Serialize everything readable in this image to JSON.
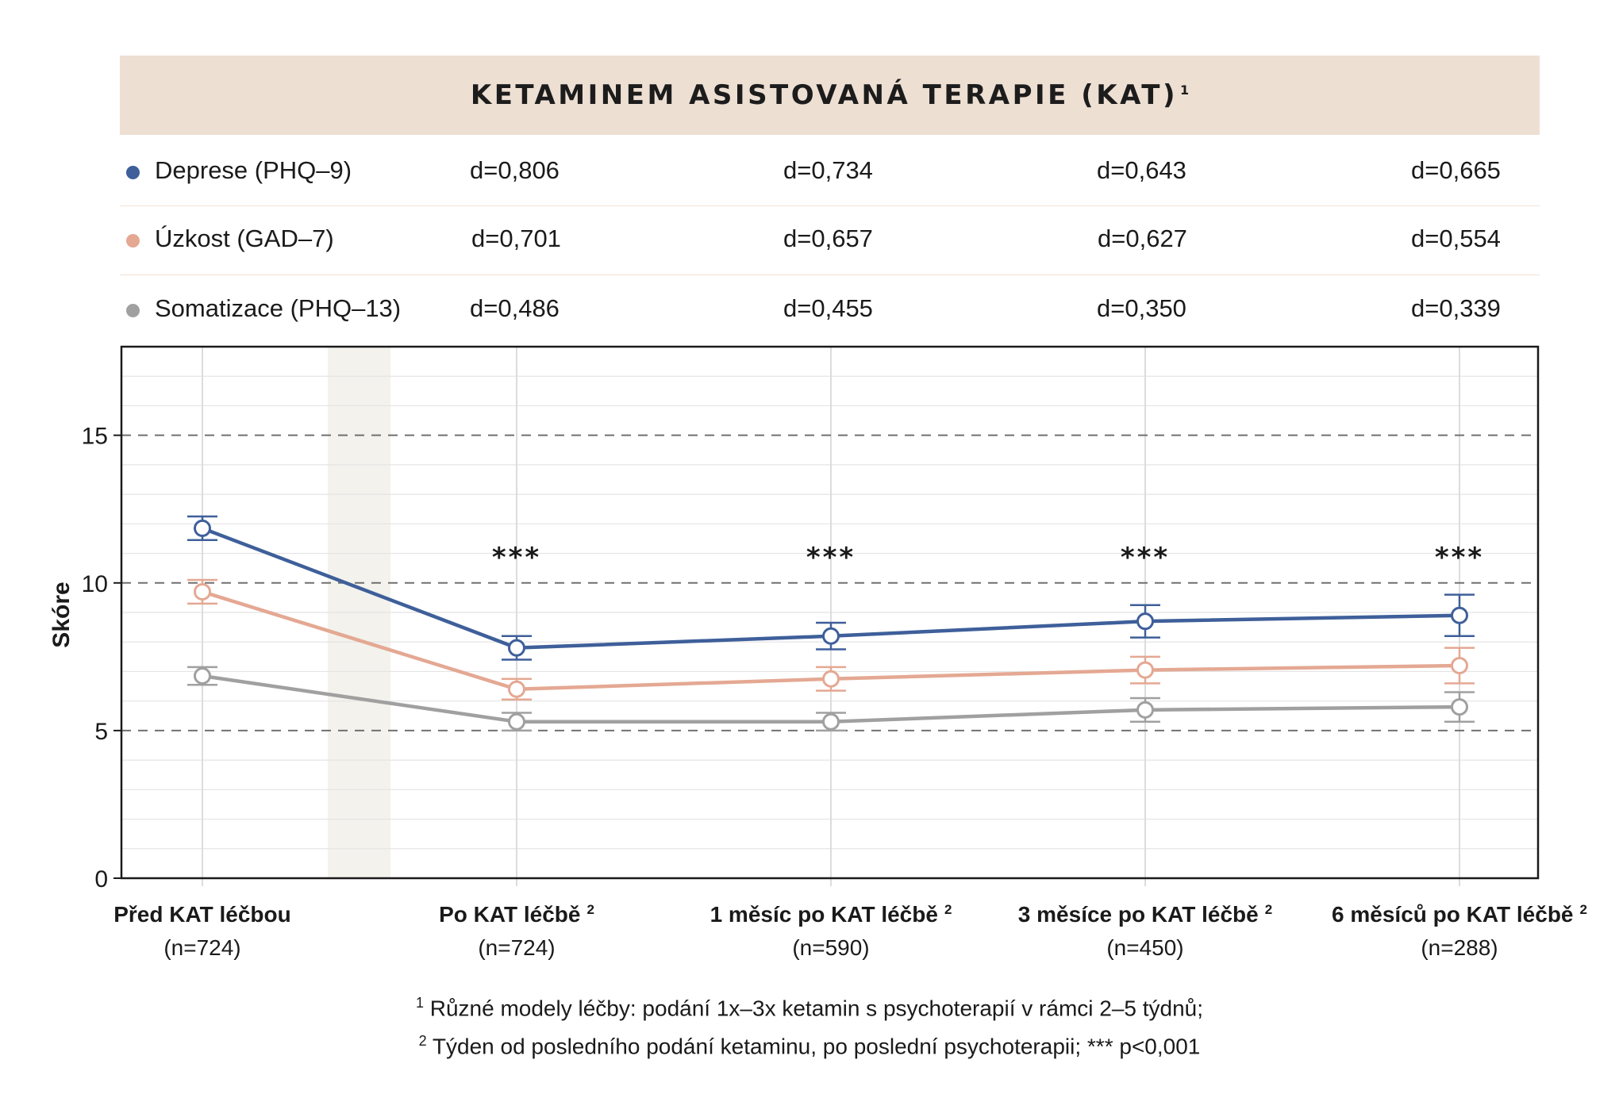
{
  "header": {
    "title": "KETAMINEM ASISTOVANÁ TERAPIE (KAT)",
    "title_marker": "1"
  },
  "effect_table": [
    {
      "label": "Deprese (PHQ–9)",
      "color": "#3e5f9a",
      "values": [
        "d=0,806",
        "d=0,734",
        "d=0,643",
        "d=0,665"
      ]
    },
    {
      "label": "Úzkost (GAD–7)",
      "color": "#e4a893",
      "values": [
        "d=0,701",
        "d=0,657",
        "d=0,627",
        "d=0,554"
      ]
    },
    {
      "label": "Somatizace (PHQ–13)",
      "color": "#a0a0a0",
      "values": [
        "d=0,486",
        "d=0,455",
        "d=0,350",
        "d=0,339"
      ]
    }
  ],
  "chart_data": {
    "type": "line",
    "ylabel": "Skóre",
    "xlabel": "",
    "ylim": [
      0,
      18
    ],
    "yticks": [
      0,
      5,
      10,
      15
    ],
    "grid": true,
    "categories": [
      {
        "label": "Před KAT léčbou",
        "marker": "",
        "n": "(n=724)"
      },
      {
        "label": "Po KAT léčbě",
        "marker": "2",
        "n": "(n=724)"
      },
      {
        "label": "1 měsíc po KAT léčbě",
        "marker": "2",
        "n": "(n=590)"
      },
      {
        "label": "3 měsíce po KAT léčbě",
        "marker": "2",
        "n": "(n=450)"
      },
      {
        "label": "6 měsíců po KAT léčbě",
        "marker": "2",
        "n": "(n=288)"
      }
    ],
    "series": [
      {
        "name": "Deprese (PHQ–9)",
        "color": "#3e5f9a",
        "values": [
          11.85,
          7.8,
          8.2,
          8.7,
          8.9
        ],
        "error_low": [
          11.45,
          7.4,
          7.75,
          8.15,
          8.2
        ],
        "error_high": [
          12.25,
          8.2,
          8.65,
          9.25,
          9.6
        ]
      },
      {
        "name": "Úzkost (GAD–7)",
        "color": "#e4a893",
        "values": [
          9.7,
          6.4,
          6.75,
          7.05,
          7.2
        ],
        "error_low": [
          9.3,
          6.05,
          6.35,
          6.6,
          6.6
        ],
        "error_high": [
          10.1,
          6.75,
          7.15,
          7.5,
          7.8
        ]
      },
      {
        "name": "Somatizace (PHQ–13)",
        "color": "#a0a0a0",
        "values": [
          6.85,
          5.3,
          5.3,
          5.7,
          5.8
        ],
        "error_low": [
          6.55,
          5.0,
          5.0,
          5.3,
          5.3
        ],
        "error_high": [
          7.15,
          5.6,
          5.6,
          6.1,
          6.3
        ]
      }
    ],
    "annotations": [
      "",
      "***",
      "***",
      "***",
      "***"
    ]
  },
  "footnotes": [
    {
      "marker": "1",
      "text": " Různé modely léčby: podání 1x–3x ketamin s psychoterapií v rámci 2–5 týdnů;"
    },
    {
      "marker": "2",
      "text": " Týden od posledního podání ketaminu, po poslední psychoterapii; *** p<0,001"
    }
  ]
}
